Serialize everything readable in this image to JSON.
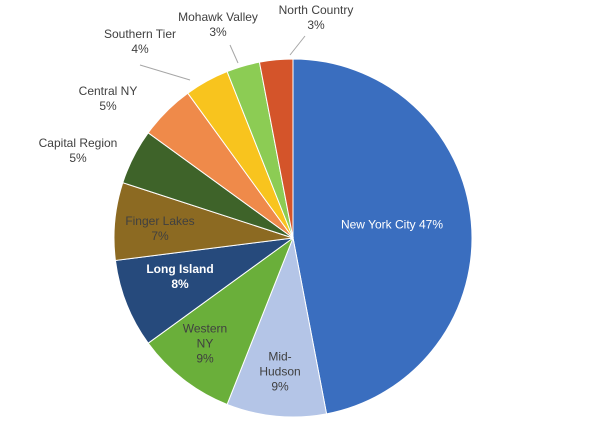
{
  "chart_data": {
    "type": "pie",
    "categories": [
      "New York City",
      "Mid-Hudson",
      "Western NY",
      "Long Island",
      "Finger Lakes",
      "Capital Region",
      "Central NY",
      "Southern Tier",
      "Mohawk Valley",
      "North Country"
    ],
    "values": [
      47,
      9,
      9,
      8,
      7,
      5,
      5,
      4,
      3,
      3
    ],
    "value_labels": [
      "47%",
      "9%",
      "9%",
      "8%",
      "7%",
      "5%",
      "5%",
      "4%",
      "3%",
      "3%"
    ],
    "colors": [
      "#3a6ebf",
      "#b4c5e7",
      "#6aaf3a",
      "#264a7c",
      "#8c6a22",
      "#3e6329",
      "#ef8a4a",
      "#f8c41e",
      "#8ccc54",
      "#d4542a"
    ]
  }
}
